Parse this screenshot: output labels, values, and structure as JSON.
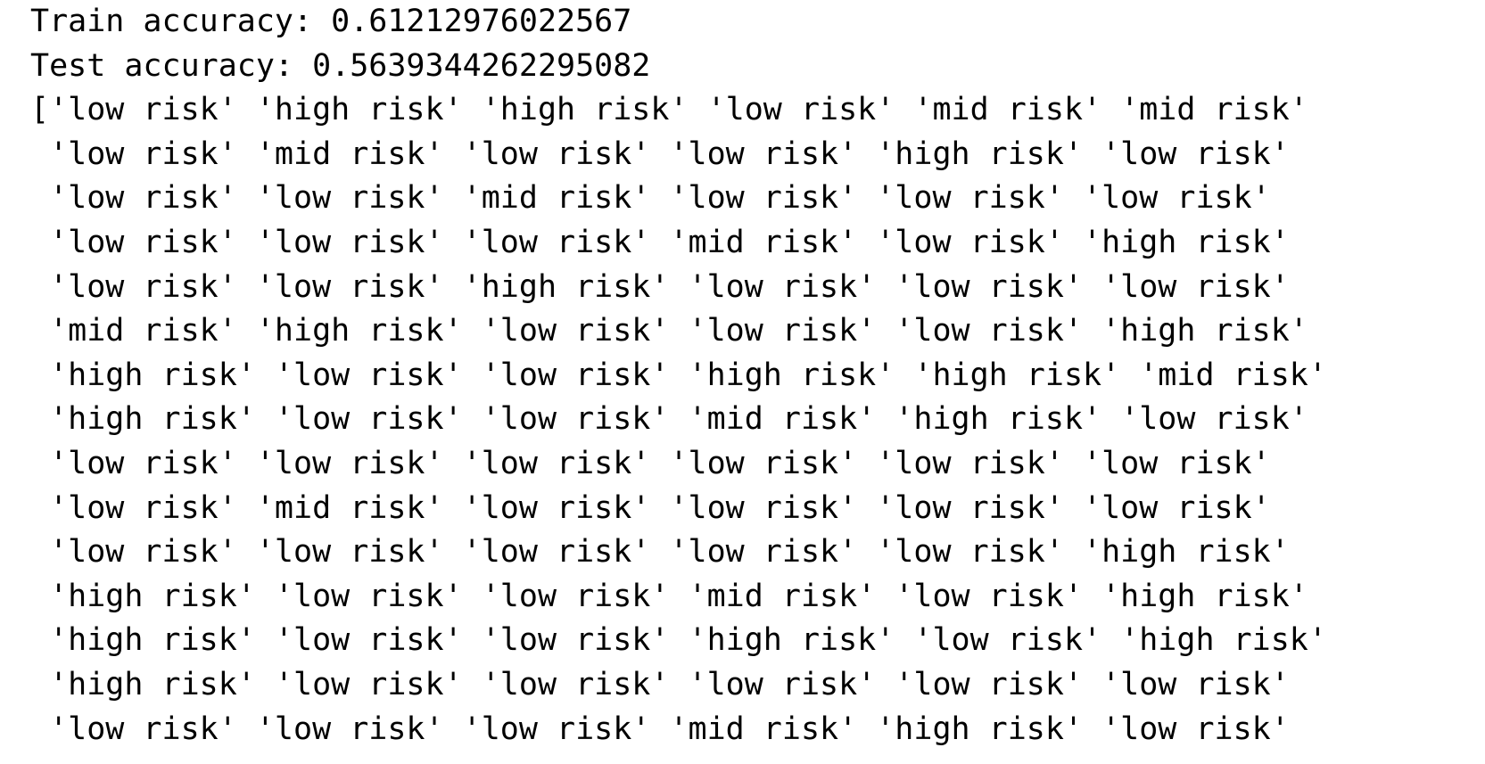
{
  "output": {
    "train_accuracy": "Train accuracy: 0.61212976022567",
    "test_accuracy": "Test accuracy: 0.5639344262295082",
    "predictions": [
      "['low risk' 'high risk' 'high risk' 'low risk' 'mid risk' 'mid risk'",
      " 'low risk' 'mid risk' 'low risk' 'low risk' 'high risk' 'low risk'",
      " 'low risk' 'low risk' 'mid risk' 'low risk' 'low risk' 'low risk'",
      " 'low risk' 'low risk' 'low risk' 'mid risk' 'low risk' 'high risk'",
      " 'low risk' 'low risk' 'high risk' 'low risk' 'low risk' 'low risk'",
      " 'mid risk' 'high risk' 'low risk' 'low risk' 'low risk' 'high risk'",
      " 'high risk' 'low risk' 'low risk' 'high risk' 'high risk' 'mid risk'",
      " 'high risk' 'low risk' 'low risk' 'mid risk' 'high risk' 'low risk'",
      " 'low risk' 'low risk' 'low risk' 'low risk' 'low risk' 'low risk'",
      " 'low risk' 'mid risk' 'low risk' 'low risk' 'low risk' 'low risk'",
      " 'low risk' 'low risk' 'low risk' 'low risk' 'low risk' 'high risk'",
      " 'high risk' 'low risk' 'low risk' 'mid risk' 'low risk' 'high risk'",
      " 'high risk' 'low risk' 'low risk' 'high risk' 'low risk' 'high risk'",
      " 'high risk' 'low risk' 'low risk' 'low risk' 'low risk' 'low risk'",
      " 'low risk' 'low risk' 'low risk' 'mid risk' 'high risk' 'low risk'"
    ]
  }
}
